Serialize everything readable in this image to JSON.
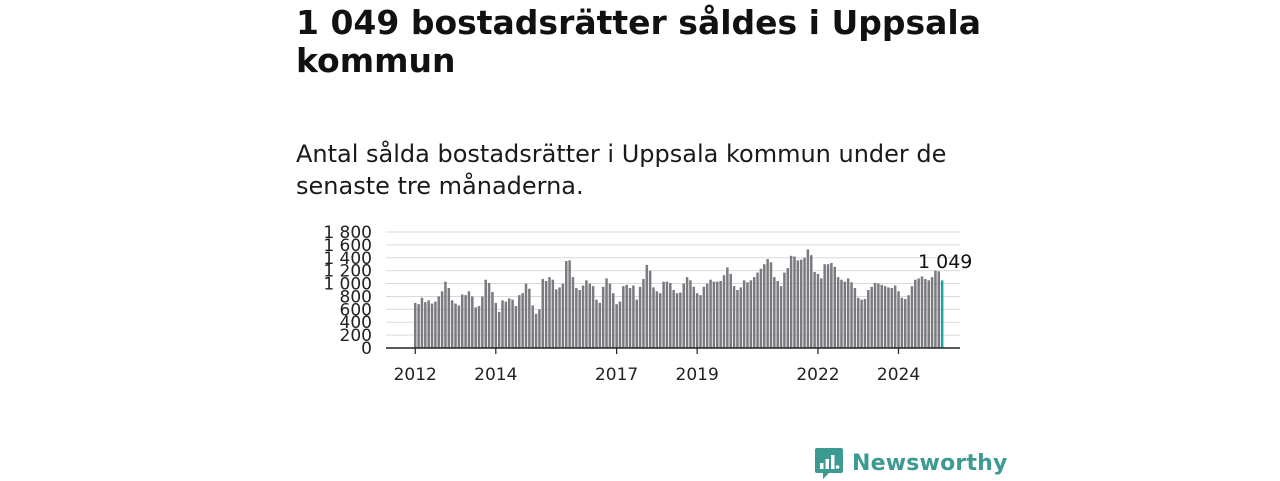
{
  "headline": "1 049 bostadsrätter såldes i Uppsala kommun",
  "subtitle": "Antal sålda bostadsrätter i Uppsala kommun under de senaste tre månaderna.",
  "brand": {
    "name": "Newsworthy",
    "logo_icon": "bar-chart-badge-icon",
    "color": "#3c9a93"
  },
  "colors": {
    "bar": "#7b7a80",
    "highlight": "#20a39e",
    "grid": "#d9d9d9",
    "axis": "#222222"
  },
  "chart_data": {
    "type": "bar",
    "title": "",
    "xlabel": "",
    "ylabel": "",
    "ylim": [
      0,
      1800
    ],
    "yticks": [
      {
        "value": 0,
        "label": "0"
      },
      {
        "value": 200,
        "label": "200"
      },
      {
        "value": 400,
        "label": "400"
      },
      {
        "value": 600,
        "label": "600"
      },
      {
        "value": 800,
        "label": "800"
      },
      {
        "value": 1000,
        "label": "1 000"
      },
      {
        "value": 1200,
        "label": "1 200"
      },
      {
        "value": 1400,
        "label": "1 400"
      },
      {
        "value": 1600,
        "label": "1 600"
      },
      {
        "value": 1800,
        "label": "1 800"
      }
    ],
    "xticks": [
      "2012",
      "2014",
      "2017",
      "2019",
      "2022",
      "2024"
    ],
    "start": "2012-01",
    "grid": true,
    "highlight_label": "1 049",
    "values": [
      700,
      680,
      780,
      710,
      740,
      690,
      720,
      800,
      880,
      1030,
      930,
      740,
      690,
      660,
      830,
      820,
      880,
      800,
      630,
      650,
      800,
      1060,
      1010,
      870,
      700,
      560,
      740,
      720,
      770,
      750,
      650,
      820,
      850,
      1000,
      920,
      660,
      530,
      600,
      1070,
      1040,
      1100,
      1060,
      910,
      940,
      1000,
      1350,
      1360,
      1100,
      930,
      900,
      970,
      1050,
      1000,
      960,
      750,
      700,
      950,
      1080,
      1000,
      850,
      680,
      720,
      960,
      980,
      930,
      970,
      750,
      950,
      1070,
      1290,
      1200,
      940,
      880,
      850,
      1030,
      1030,
      1010,
      900,
      850,
      860,
      1000,
      1100,
      1050,
      950,
      850,
      820,
      950,
      1000,
      1060,
      1030,
      1030,
      1040,
      1130,
      1250,
      1150,
      960,
      900,
      940,
      1050,
      1020,
      1050,
      1100,
      1170,
      1230,
      1300,
      1380,
      1330,
      1100,
      1040,
      960,
      1170,
      1240,
      1430,
      1420,
      1360,
      1370,
      1400,
      1530,
      1440,
      1180,
      1150,
      1080,
      1300,
      1300,
      1320,
      1260,
      1100,
      1060,
      1030,
      1080,
      1020,
      930,
      780,
      750,
      760,
      900,
      950,
      1010,
      1000,
      980,
      960,
      940,
      930,
      970,
      880,
      780,
      760,
      820,
      960,
      1060,
      1080,
      1110,
      1070,
      1050,
      1100,
      1200,
      1190,
      1049
    ]
  }
}
